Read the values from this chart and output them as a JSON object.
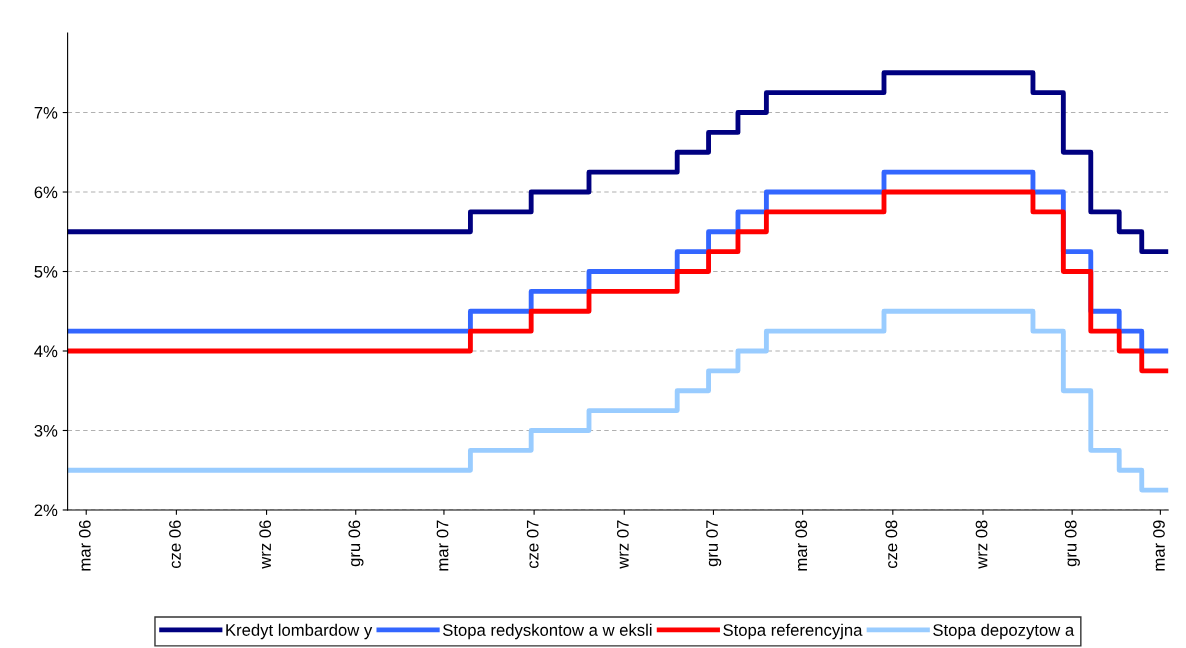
{
  "chart_data": {
    "type": "step",
    "x": [
      "2006-02-10",
      "2007-03-28",
      "2007-05-29",
      "2007-07-27",
      "2007-10-25",
      "2007-11-26",
      "2007-12-26",
      "2008-01-24",
      "2008-05-23",
      "2008-10-22",
      "2008-11-22",
      "2008-12-20",
      "2009-01-18",
      "2009-02-10",
      "2009-03-09"
    ],
    "series": [
      {
        "name": "Kredyt lombardow y",
        "color": "#000080",
        "values": [
          5.5,
          5.75,
          6.0,
          6.25,
          6.5,
          6.75,
          7.0,
          7.25,
          7.5,
          7.25,
          6.5,
          5.75,
          5.5,
          5.25,
          5.25
        ]
      },
      {
        "name": "Stopa redyskontow a w eksli",
        "color": "#3366ff",
        "values": [
          4.25,
          4.5,
          4.75,
          5.0,
          5.25,
          5.5,
          5.75,
          6.0,
          6.25,
          6.0,
          5.25,
          4.5,
          4.25,
          4.0,
          4.0
        ]
      },
      {
        "name": "Stopa referencyjna",
        "color": "#ff0000",
        "values": [
          4.0,
          4.25,
          4.5,
          4.75,
          5.0,
          5.25,
          5.5,
          5.75,
          6.0,
          5.75,
          5.0,
          4.25,
          4.0,
          3.75,
          3.75
        ]
      },
      {
        "name": "Stopa depozytow a",
        "color": "#99ccff",
        "values": [
          2.5,
          2.75,
          3.0,
          3.25,
          3.5,
          3.75,
          4.0,
          4.25,
          4.5,
          4.25,
          3.5,
          2.75,
          2.5,
          2.25,
          2.25
        ]
      }
    ],
    "xlim": [
      "2006-02-10",
      "2009-03-09"
    ],
    "xticks": [
      {
        "value": "2006-03-01",
        "label": "mar 06"
      },
      {
        "value": "2006-06-01",
        "label": "cze 06"
      },
      {
        "value": "2006-09-01",
        "label": "wrz 06"
      },
      {
        "value": "2006-12-01",
        "label": "gru 06"
      },
      {
        "value": "2007-03-01",
        "label": "mar 07"
      },
      {
        "value": "2007-06-01",
        "label": "cze 07"
      },
      {
        "value": "2007-09-01",
        "label": "wrz 07"
      },
      {
        "value": "2007-12-01",
        "label": "gru 07"
      },
      {
        "value": "2008-03-01",
        "label": "mar 08"
      },
      {
        "value": "2008-06-01",
        "label": "cze 08"
      },
      {
        "value": "2008-09-01",
        "label": "wrz 08"
      },
      {
        "value": "2008-12-01",
        "label": "gru 08"
      },
      {
        "value": "2009-03-01",
        "label": "mar 09"
      }
    ],
    "ylim": [
      2,
      8
    ],
    "yticks": [
      {
        "value": 2,
        "label": "2%"
      },
      {
        "value": 3,
        "label": "3%"
      },
      {
        "value": 4,
        "label": "4%"
      },
      {
        "value": 5,
        "label": "5%"
      },
      {
        "value": 6,
        "label": "6%"
      },
      {
        "value": 7,
        "label": "7%"
      }
    ],
    "grid": "y",
    "legend": "bottom",
    "line_style": "solid"
  }
}
